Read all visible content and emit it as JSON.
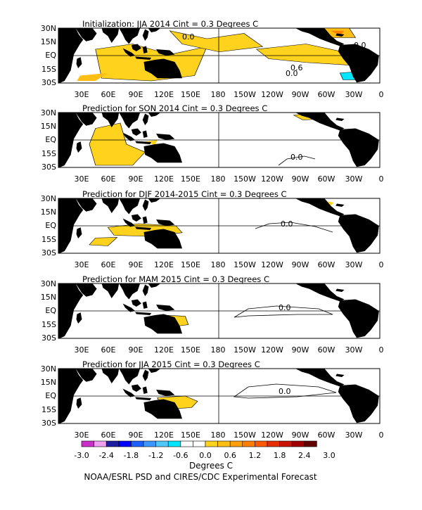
{
  "panels": [
    {
      "title": "Initialization: JJA 2014  Cint = 0.3 Degrees C",
      "contour_labels": [
        "0.0",
        "0.6",
        "0.0",
        "0.0"
      ]
    },
    {
      "title": "Prediction for SON 2014  Cint = 0.3 Degrees C",
      "contour_labels": [
        "0.0"
      ]
    },
    {
      "title": "Prediction for DJF 2014-2015  Cint = 0.3 Degrees C",
      "contour_labels": [
        "0.0"
      ]
    },
    {
      "title": "Prediction for MAM 2015  Cint = 0.3 Degrees C",
      "contour_labels": [
        "0.0"
      ]
    },
    {
      "title": "Prediction for JJA 2015  Cint = 0.3 Degrees C",
      "contour_labels": [
        "0.0"
      ]
    }
  ],
  "lat_labels": [
    "30N",
    "15N",
    "EQ",
    "15S",
    "30S"
  ],
  "lon_labels": [
    "30E",
    "60E",
    "90E",
    "120E",
    "150E",
    "180",
    "150W",
    "120W",
    "90W",
    "60W",
    "30W",
    "0"
  ],
  "colorbar": {
    "colors": [
      "#c830c8",
      "#f0a0f0",
      "#1e1ea0",
      "#0000ff",
      "#1e60ff",
      "#3c96ff",
      "#50c8ff",
      "#00e6ff",
      "#ffffff",
      "#ffffff",
      "#ffd21e",
      "#ffbe14",
      "#ffa00a",
      "#ff7f00",
      "#ff5a00",
      "#e62d00",
      "#c81400",
      "#a00000",
      "#640000"
    ],
    "labels": [
      "-3.0",
      "-2.4",
      "-1.8",
      "-1.2",
      "-0.6",
      "0.0",
      "0.6",
      "1.2",
      "1.8",
      "2.4",
      "3.0"
    ]
  },
  "units_label": "Degrees C",
  "credit": "NOAA/ESRL PSD and CIRES/CDC Experimental Forecast"
}
